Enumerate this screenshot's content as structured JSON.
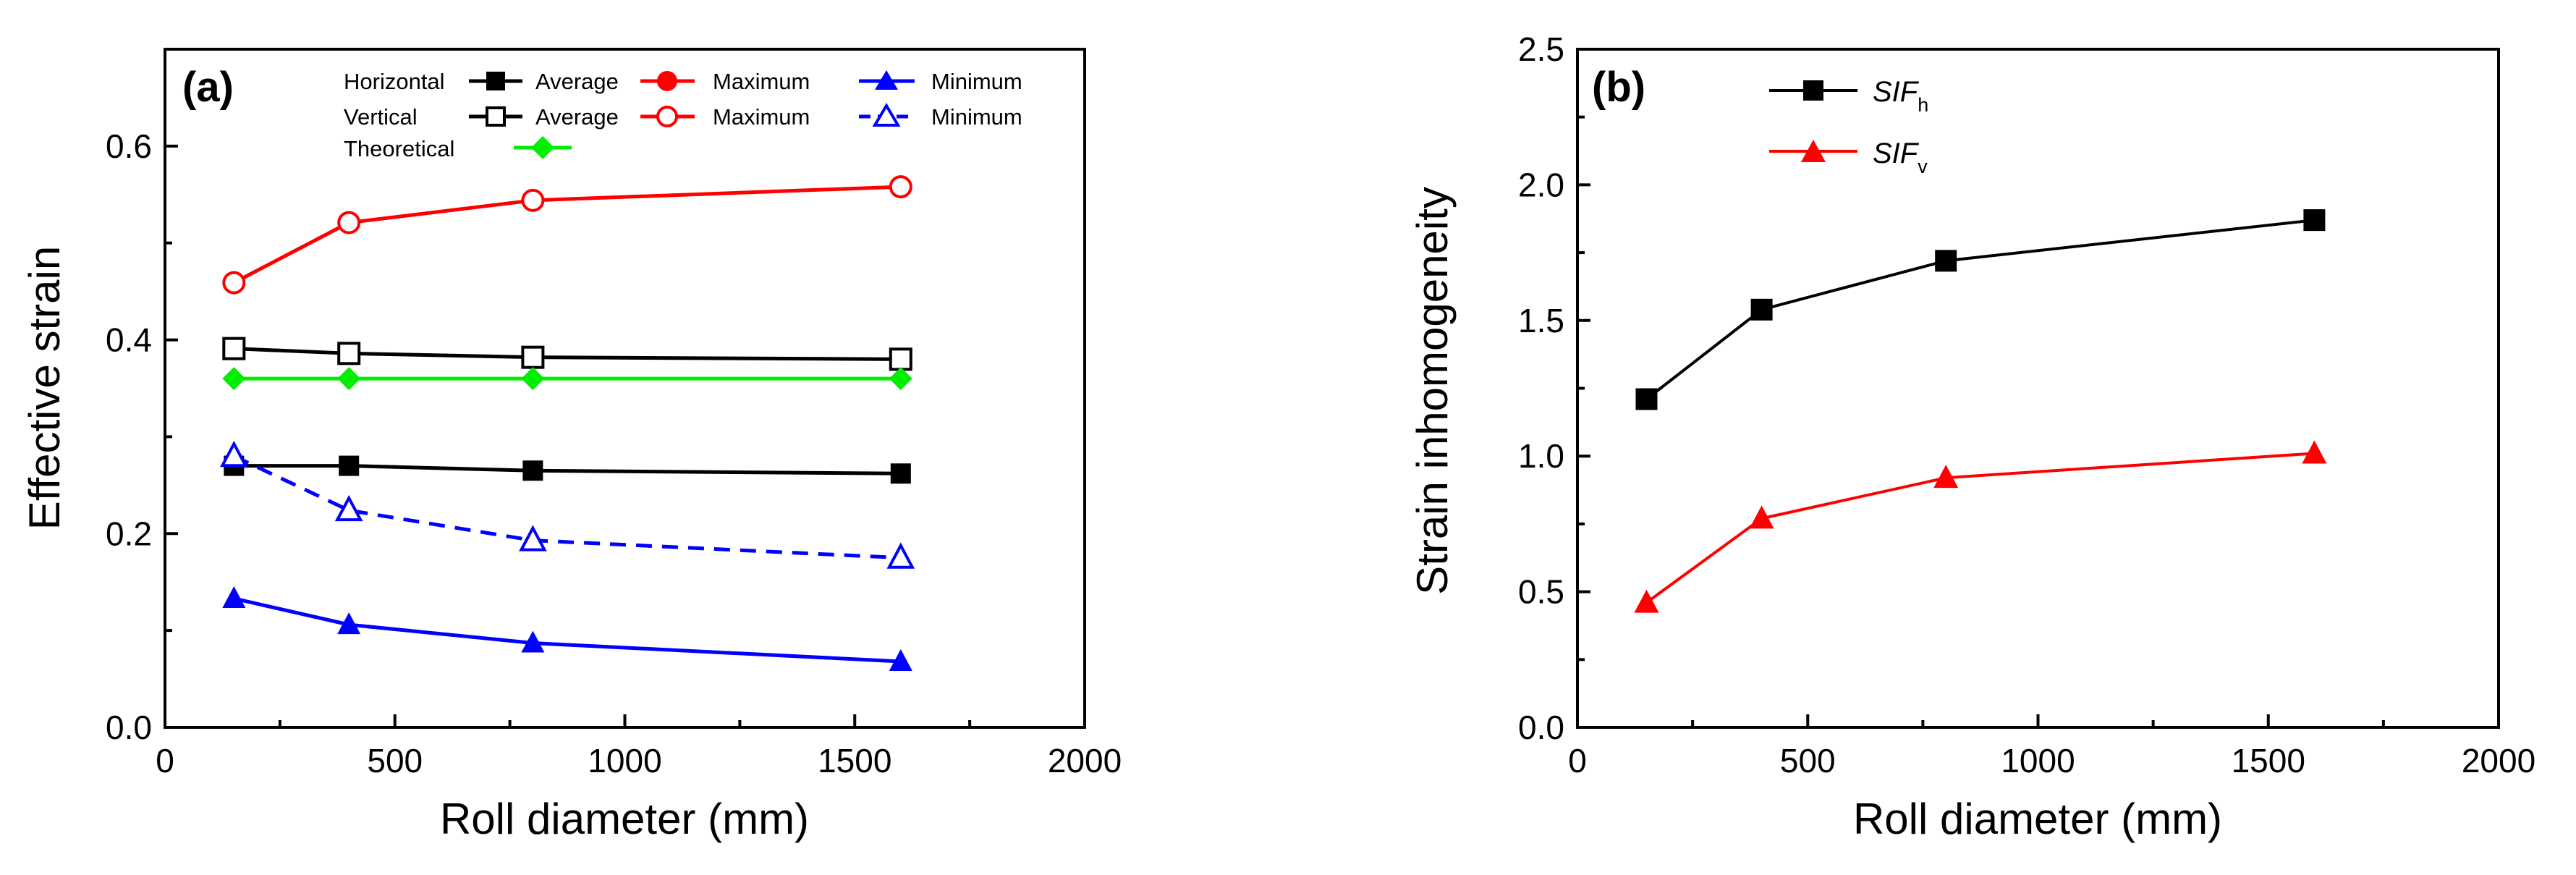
{
  "chart_data": [
    {
      "id": "a",
      "type": "line",
      "panel_label": "(a)",
      "xlabel": "Roll diameter (mm)",
      "ylabel": "Effective strain",
      "xlim": [
        0,
        2000
      ],
      "ylim": [
        0,
        0.7
      ],
      "xticks": [
        0,
        500,
        1000,
        1500,
        2000
      ],
      "yticks": [
        0.0,
        0.2,
        0.4,
        0.6
      ],
      "xtick_labels": [
        "0",
        "500",
        "1000",
        "1500",
        "2000"
      ],
      "ytick_labels": [
        "0.0",
        "0.2",
        "0.4",
        "0.6"
      ],
      "legend": {
        "row_labels": [
          "Horizontal",
          "Vertical",
          "Theoretical"
        ],
        "col_labels": [
          "Average",
          "Maximum",
          "Minimum"
        ]
      },
      "x": [
        150,
        400,
        800,
        1600
      ],
      "series": [
        {
          "name": "Horizontal Average",
          "color": "#000000",
          "marker": "square",
          "filled": true,
          "dash": false,
          "values": [
            0.27,
            0.27,
            0.265,
            0.262
          ]
        },
        {
          "name": "Vertical Average",
          "color": "#000000",
          "marker": "square",
          "filled": false,
          "dash": false,
          "values": [
            0.391,
            0.386,
            0.382,
            0.38
          ]
        },
        {
          "name": "Vertical Maximum",
          "color": "#ff0000",
          "marker": "circle",
          "filled": false,
          "dash": false,
          "values": [
            0.459,
            0.521,
            0.544,
            0.558
          ]
        },
        {
          "name": "Theoretical",
          "color": "#00ee00",
          "marker": "diamond",
          "filled": true,
          "dash": false,
          "values": [
            0.36,
            0.36,
            0.36,
            0.36
          ]
        },
        {
          "name": "Vertical Minimum",
          "color": "#0000ff",
          "marker": "triangle",
          "filled": false,
          "dash": true,
          "values": [
            0.28,
            0.224,
            0.193,
            0.175
          ]
        },
        {
          "name": "Horizontal Minimum",
          "color": "#0000ff",
          "marker": "triangle",
          "filled": true,
          "dash": false,
          "values": [
            0.133,
            0.106,
            0.087,
            0.068
          ]
        }
      ]
    },
    {
      "id": "b",
      "type": "line",
      "panel_label": "(b)",
      "xlabel": "Roll diameter (mm)",
      "ylabel": "Strain inhomogeneity",
      "xlim": [
        0,
        2000
      ],
      "ylim": [
        0,
        2.5
      ],
      "xticks": [
        0,
        500,
        1000,
        1500,
        2000
      ],
      "yticks": [
        0.0,
        0.5,
        1.0,
        1.5,
        2.0,
        2.5
      ],
      "xtick_labels": [
        "0",
        "500",
        "1000",
        "1500",
        "2000"
      ],
      "ytick_labels": [
        "0.0",
        "0.5",
        "1.0",
        "1.5",
        "2.0",
        "2.5"
      ],
      "x": [
        150,
        400,
        800,
        1600
      ],
      "series": [
        {
          "name": "SIF",
          "subscript": "h",
          "color": "#000000",
          "marker": "square",
          "filled": true,
          "dash": false,
          "values": [
            1.21,
            1.54,
            1.72,
            1.87
          ]
        },
        {
          "name": "SIF",
          "subscript": "v",
          "color": "#ff0000",
          "marker": "triangle",
          "filled": true,
          "dash": false,
          "values": [
            0.46,
            0.77,
            0.92,
            1.01
          ]
        }
      ]
    }
  ]
}
